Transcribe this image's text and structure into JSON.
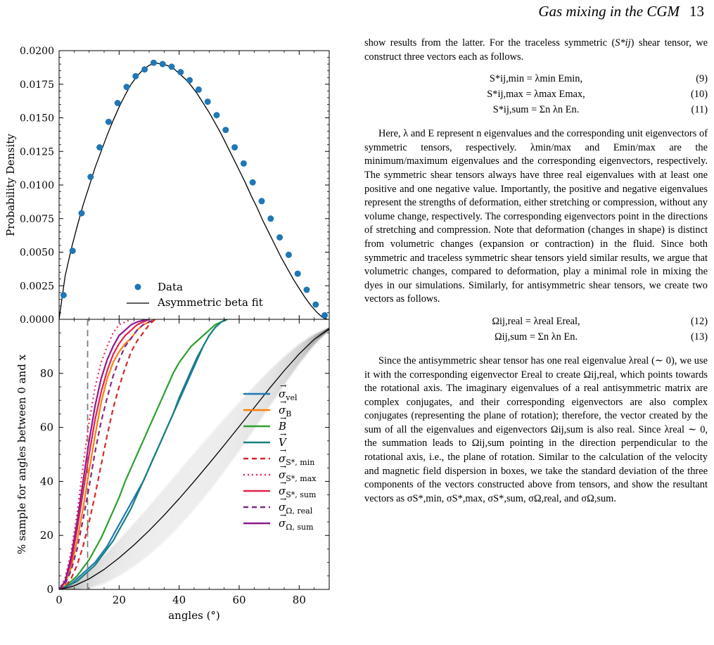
{
  "header": {
    "title": "Gas mixing in the CGM",
    "page_number": "13"
  },
  "chart_data": [
    {
      "type": "scatter",
      "title": "",
      "xlabel": "",
      "ylabel": "Probability Density",
      "xlim": [
        0,
        90
      ],
      "ylim": [
        0,
        0.02
      ],
      "yticks": [
        "0.0000",
        "0.0025",
        "0.0050",
        "0.0075",
        "0.0100",
        "0.0125",
        "0.0150",
        "0.0175",
        "0.0200"
      ],
      "legend": [
        "Data",
        "Asymmetric beta fit"
      ],
      "legend_position": "bottom-right",
      "series": [
        {
          "name": "Data",
          "x": [
            1.5,
            4.5,
            7.5,
            10.5,
            13.5,
            16.5,
            19.5,
            22.5,
            25.5,
            28.5,
            31.5,
            34.5,
            37.5,
            40.5,
            43.5,
            46.5,
            49.5,
            52.5,
            55.5,
            58.5,
            61.5,
            64.5,
            67.5,
            70.5,
            73.5,
            76.5,
            79.5,
            82.5,
            85.5,
            88.5
          ],
          "y": [
            0.0018,
            0.0051,
            0.0079,
            0.0106,
            0.0128,
            0.0147,
            0.0161,
            0.0173,
            0.0181,
            0.0186,
            0.0191,
            0.019,
            0.0188,
            0.0184,
            0.0178,
            0.0171,
            0.0162,
            0.0152,
            0.0141,
            0.0128,
            0.0116,
            0.0102,
            0.0088,
            0.0075,
            0.0061,
            0.0048,
            0.0034,
            0.0022,
            0.0011,
            0.0003
          ]
        },
        {
          "name": "Asymmetric beta fit",
          "x": [
            0,
            2,
            4,
            6,
            8,
            10,
            12,
            14,
            16,
            18,
            20,
            22,
            24,
            26,
            28,
            30,
            32,
            34,
            36,
            38,
            40,
            42,
            44,
            46,
            48,
            50,
            52,
            54,
            56,
            58,
            60,
            62,
            64,
            66,
            68,
            70,
            72,
            74,
            76,
            78,
            80,
            82,
            84,
            86,
            88,
            89.5
          ],
          "y": [
            0.0,
            0.0032,
            0.0052,
            0.0069,
            0.0085,
            0.0099,
            0.0113,
            0.0125,
            0.0137,
            0.0148,
            0.0158,
            0.0167,
            0.0175,
            0.0181,
            0.0186,
            0.0189,
            0.0191,
            0.019,
            0.0189,
            0.0187,
            0.0183,
            0.0179,
            0.0174,
            0.0168,
            0.0161,
            0.0154,
            0.0146,
            0.0138,
            0.0129,
            0.012,
            0.0111,
            0.0102,
            0.0092,
            0.0083,
            0.0073,
            0.0064,
            0.0055,
            0.0046,
            0.0038,
            0.003,
            0.0023,
            0.0016,
            0.001,
            0.0005,
            0.0001,
            0.0
          ]
        }
      ]
    },
    {
      "type": "line",
      "title": "",
      "xlabel": "angles (°)",
      "ylabel": "% sample for angles between 0 and x",
      "xlim": [
        0,
        90
      ],
      "ylim": [
        0,
        100
      ],
      "xticks": [
        "0",
        "20",
        "40",
        "60",
        "80"
      ],
      "yticks": [
        "0",
        "20",
        "40",
        "60",
        "80"
      ],
      "vline_x": 9.5,
      "legend_position": "center-right",
      "series": [
        {
          "name": "σvel",
          "label_main": "σ",
          "label_sub": "vel",
          "color": "#1f77b4",
          "dash": "solid",
          "x": [
            0,
            2,
            4,
            6,
            8,
            10,
            12,
            14,
            16,
            18,
            20,
            22,
            24,
            26,
            28,
            30,
            32,
            34,
            36,
            38,
            40,
            42,
            44,
            46,
            48,
            50,
            52,
            54,
            56
          ],
          "y": [
            0,
            1,
            2,
            4,
            6,
            8,
            10,
            13,
            16,
            20,
            24,
            28,
            32,
            36,
            40,
            45,
            50,
            55,
            60,
            65,
            70,
            75,
            80,
            85,
            90,
            94,
            97,
            99,
            100
          ]
        },
        {
          "name": "σB",
          "label_main": "σ",
          "label_sub": "B",
          "color": "#ff7f0e",
          "dash": "solid",
          "x": [
            0,
            2,
            4,
            6,
            8,
            10,
            12,
            14,
            16,
            18,
            20,
            22,
            24,
            26,
            28,
            30,
            32
          ],
          "y": [
            0,
            2,
            8,
            18,
            30,
            44,
            57,
            69,
            78,
            84,
            88,
            91,
            93,
            96,
            98,
            99,
            100
          ]
        },
        {
          "name": "B",
          "label_main": "B",
          "label_sub": "",
          "color": "#2ca02c",
          "dash": "solid",
          "x": [
            0,
            2,
            4,
            6,
            8,
            10,
            12,
            14,
            16,
            18,
            20,
            22,
            24,
            26,
            28,
            30,
            32,
            34,
            36,
            38,
            40,
            42,
            44,
            46,
            48,
            50,
            52,
            54,
            56
          ],
          "y": [
            0,
            1,
            3,
            5,
            8,
            11,
            15,
            19,
            24,
            29,
            34,
            40,
            45,
            50,
            55,
            60,
            65,
            70,
            75,
            80,
            84,
            87,
            90,
            92,
            94,
            96,
            98,
            99,
            100
          ]
        },
        {
          "name": "V",
          "label_main": "V",
          "label_sub": "",
          "color": "#17807e",
          "dash": "solid",
          "x": [
            0,
            2,
            4,
            6,
            8,
            10,
            12,
            14,
            16,
            18,
            20,
            22,
            24,
            26,
            28,
            30,
            32,
            34,
            36,
            38,
            40,
            42,
            44,
            46,
            48,
            50,
            52,
            54,
            56
          ],
          "y": [
            0,
            1,
            2,
            3,
            5,
            7,
            9,
            12,
            15,
            18,
            22,
            26,
            30,
            35,
            40,
            45,
            50,
            55,
            60,
            65,
            71,
            76,
            81,
            86,
            90,
            94,
            97,
            99,
            100
          ]
        },
        {
          "name": "σS*,min",
          "label_main": "σ",
          "label_sub": "S*, min",
          "color": "#d62728",
          "dash": "7,5",
          "x": [
            0,
            2,
            4,
            6,
            8,
            10,
            12,
            14,
            16,
            18,
            20,
            22,
            24,
            26,
            28,
            30,
            32
          ],
          "y": [
            0,
            1,
            4,
            9,
            16,
            25,
            35,
            46,
            57,
            67,
            75,
            82,
            88,
            92,
            95,
            98,
            100
          ]
        },
        {
          "name": "σS*,max",
          "label_main": "σ",
          "label_sub": "S*, max",
          "color": "#e8285a",
          "dash": "2,4",
          "x": [
            0,
            2,
            4,
            6,
            8,
            10,
            12,
            14,
            16,
            18,
            20,
            22,
            24
          ],
          "y": [
            0,
            4,
            14,
            28,
            46,
            62,
            75,
            84,
            90,
            95,
            98,
            99,
            100
          ]
        },
        {
          "name": "σS*,sum",
          "label_main": "σ",
          "label_sub": "S*, sum",
          "color": "#e3204f",
          "dash": "solid",
          "x": [
            0,
            2,
            4,
            6,
            8,
            10,
            12,
            14,
            16,
            18,
            20,
            22,
            24,
            26,
            28,
            30
          ],
          "y": [
            0,
            3,
            10,
            22,
            36,
            50,
            63,
            73,
            81,
            87,
            91,
            94,
            96,
            98,
            99,
            100
          ]
        },
        {
          "name": "σΩ,real",
          "label_main": "σ",
          "label_sub": "Ω, real",
          "color": "#7b2a8c",
          "dash": "7,5",
          "x": [
            0,
            2,
            4,
            6,
            8,
            10,
            12,
            14,
            16,
            18,
            20,
            22,
            24,
            26,
            28,
            30,
            32
          ],
          "y": [
            0,
            2,
            7,
            15,
            26,
            38,
            51,
            62,
            71,
            79,
            85,
            90,
            93,
            96,
            98,
            99,
            100
          ]
        },
        {
          "name": "σΩ,sum",
          "label_main": "σ",
          "label_sub": "Ω, sum",
          "color": "#8b1a8a",
          "dash": "solid",
          "x": [
            0,
            2,
            4,
            6,
            8,
            10,
            12,
            14,
            16,
            18,
            20,
            22,
            24,
            26,
            28,
            30
          ],
          "y": [
            0,
            3,
            12,
            25,
            40,
            55,
            68,
            78,
            85,
            90,
            94,
            96,
            98,
            99,
            99.6,
            100
          ]
        },
        {
          "name": "beta CDF",
          "color": "#000000",
          "dash": "solid",
          "x": [
            0,
            5,
            10,
            15,
            20,
            25,
            30,
            35,
            40,
            45,
            50,
            55,
            60,
            65,
            70,
            75,
            80,
            85,
            90
          ],
          "y": [
            0,
            1.3,
            3.9,
            7.4,
            11.7,
            16.5,
            21.8,
            27.5,
            33.6,
            40.0,
            46.6,
            53.4,
            60.3,
            67.3,
            74.3,
            81.0,
            87.2,
            92.6,
            96.5
          ]
        }
      ]
    }
  ],
  "text": {
    "p1a": "show results from the latter. For the traceless symmetric (",
    "p1_sym": "S*ij",
    "p1b": ") shear tensor, we construct three vectors each as follows.",
    "eq9": "S*ij,min = λmin Emin,",
    "eq9_num": "(9)",
    "eq10": "S*ij,max = λmax Emax,",
    "eq10_num": "(10)",
    "eq11": "S*ij,sum = Σn λn En.",
    "eq11_num": "(11)",
    "p2": "Here, λ and E represent n eigenvalues and the corresponding unit eigenvectors of symmetric tensors, respectively. λmin/max and Emin/max are the minimum/maximum eigenvalues and the corresponding eigenvectors, respectively. The symmetric shear tensors always have three real eigenvalues with at least one positive and one negative value. Importantly, the positive and negative eigenvalues represent the strengths of deformation, either stretching or compression, without any volume change, respectively. The corresponding eigenvectors point in the directions of stretching and compression. Note that deformation (changes in shape) is distinct from volumetric changes (expansion or contraction) in the fluid. Since both symmetric and traceless symmetric shear tensors yield similar results, we argue that volumetric changes, compared to deformation, play a minimal role in mixing the dyes in our simulations. Similarly, for antisymmetric shear tensors, we create two vectors as follows.",
    "eq12": "Ωij,real = λreal Ereal,",
    "eq12_num": "(12)",
    "eq13": "Ωij,sum = Σn λn En.",
    "eq13_num": "(13)",
    "p3": "Since the antisymmetric shear tensor has one real eigenvalue λreal (∼ 0), we use it with the corresponding eigenvector Ereal to create Ωij,real, which points towards the rotational axis. The imaginary eigenvalues of a real antisymmetric matrix are complex conjugates, and their corresponding eigenvectors are also complex conjugates (representing the plane of rotation); therefore, the vector created by the sum of all the eigenvalues and eigenvectors Ωij,sum is also real. Since λreal ∼ 0, the summation leads to Ωij,sum pointing in the direction perpendicular to the rotational axis, i.e., the plane of rotation. Similar to the calculation of the velocity and magnetic field dispersion in boxes, we take the standard deviation of the three components of the vectors constructed above from tensors, and show the resultant vectors as σS*,min, σS*,max, σS*,sum, σΩ,real, and σΩ,sum."
  }
}
